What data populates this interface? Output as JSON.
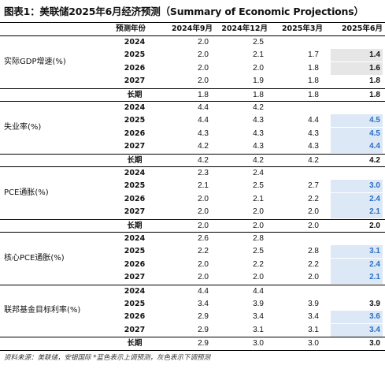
{
  "title": "图表1：美联储2025年6月经济预测（Summary of Economic Projections）",
  "headers": [
    "预测年份",
    "2024年9月",
    "2024年12月",
    "2025年3月",
    "2025年6月"
  ],
  "sections": [
    {
      "label": "实际GDP增速(%)",
      "rows": [
        {
          "year": "2024",
          "v": [
            "2.0",
            "2.5",
            "",
            ""
          ]
        },
        {
          "year": "2025",
          "v": [
            "2.0",
            "2.1",
            "1.7",
            "1.4"
          ]
        },
        {
          "year": "2026",
          "v": [
            "2.0",
            "2.0",
            "1.8",
            "1.6"
          ]
        },
        {
          "year": "2027",
          "v": [
            "2.0",
            "1.9",
            "1.8",
            "1.8"
          ]
        },
        {
          "year": "长期",
          "v": [
            "1.8",
            "1.8",
            "1.8",
            "1.8"
          ]
        }
      ]
    },
    {
      "label": "失业率(%)",
      "rows": [
        {
          "year": "2024",
          "v": [
            "4.4",
            "4.2",
            "",
            ""
          ]
        },
        {
          "year": "2025",
          "v": [
            "4.4",
            "4.3",
            "4.4",
            "4.5"
          ]
        },
        {
          "year": "2026",
          "v": [
            "4.3",
            "4.3",
            "4.3",
            "4.5"
          ]
        },
        {
          "year": "2027",
          "v": [
            "4.2",
            "4.3",
            "4.3",
            "4.4"
          ]
        },
        {
          "year": "长期",
          "v": [
            "4.2",
            "4.2",
            "4.2",
            "4.2"
          ]
        }
      ]
    },
    {
      "label": "PCE通胀(%)",
      "rows": [
        {
          "year": "2024",
          "v": [
            "2.3",
            "2.4",
            "",
            ""
          ]
        },
        {
          "year": "2025",
          "v": [
            "2.1",
            "2.5",
            "2.7",
            "3.0"
          ]
        },
        {
          "year": "2026",
          "v": [
            "2.0",
            "2.1",
            "2.2",
            "2.4"
          ]
        },
        {
          "year": "2027",
          "v": [
            "2.0",
            "2.0",
            "2.0",
            "2.1"
          ]
        },
        {
          "year": "长期",
          "v": [
            "2.0",
            "2.0",
            "2.0",
            "2.0"
          ]
        }
      ]
    },
    {
      "label": "核心PCE通胀(%)",
      "rows": [
        {
          "year": "2024",
          "v": [
            "2.6",
            "2.8",
            "",
            ""
          ]
        },
        {
          "year": "2025",
          "v": [
            "2.2",
            "2.5",
            "2.8",
            "3.1"
          ]
        },
        {
          "year": "2026",
          "v": [
            "2.0",
            "2.2",
            "2.2",
            "2.4"
          ]
        },
        {
          "year": "2027",
          "v": [
            "2.0",
            "2.0",
            "2.0",
            "2.1"
          ]
        }
      ]
    },
    {
      "label": "联邦基金目标利率(%)",
      "rows": [
        {
          "year": "2024",
          "v": [
            "4.4",
            "4.4",
            "",
            ""
          ]
        },
        {
          "year": "2025",
          "v": [
            "3.4",
            "3.9",
            "3.9",
            "3.9"
          ]
        },
        {
          "year": "2026",
          "v": [
            "2.9",
            "3.4",
            "3.4",
            "3.6"
          ]
        },
        {
          "year": "2027",
          "v": [
            "2.9",
            "3.1",
            "3.1",
            "3.4"
          ]
        },
        {
          "year": "长期",
          "v": [
            "2.9",
            "3.0",
            "3.0",
            "3.0"
          ]
        }
      ]
    }
  ],
  "highlights": {
    "grey": [
      [
        0,
        1
      ],
      [
        0,
        2
      ]
    ],
    "blue": [
      [
        1,
        1
      ],
      [
        1,
        2
      ],
      [
        1,
        3
      ],
      [
        2,
        1
      ],
      [
        2,
        2
      ],
      [
        2,
        3
      ],
      [
        3,
        1
      ],
      [
        3,
        2
      ],
      [
        3,
        3
      ],
      [
        4,
        2
      ],
      [
        4,
        3
      ]
    ]
  },
  "colors": {
    "grey": "#e6e6e6",
    "blue": "#dce8f5",
    "blue_text": "#2a6fc7"
  },
  "footer": "资料来源：美联储，安银国际   *蓝色表示上调预测，灰色表示下调预测"
}
